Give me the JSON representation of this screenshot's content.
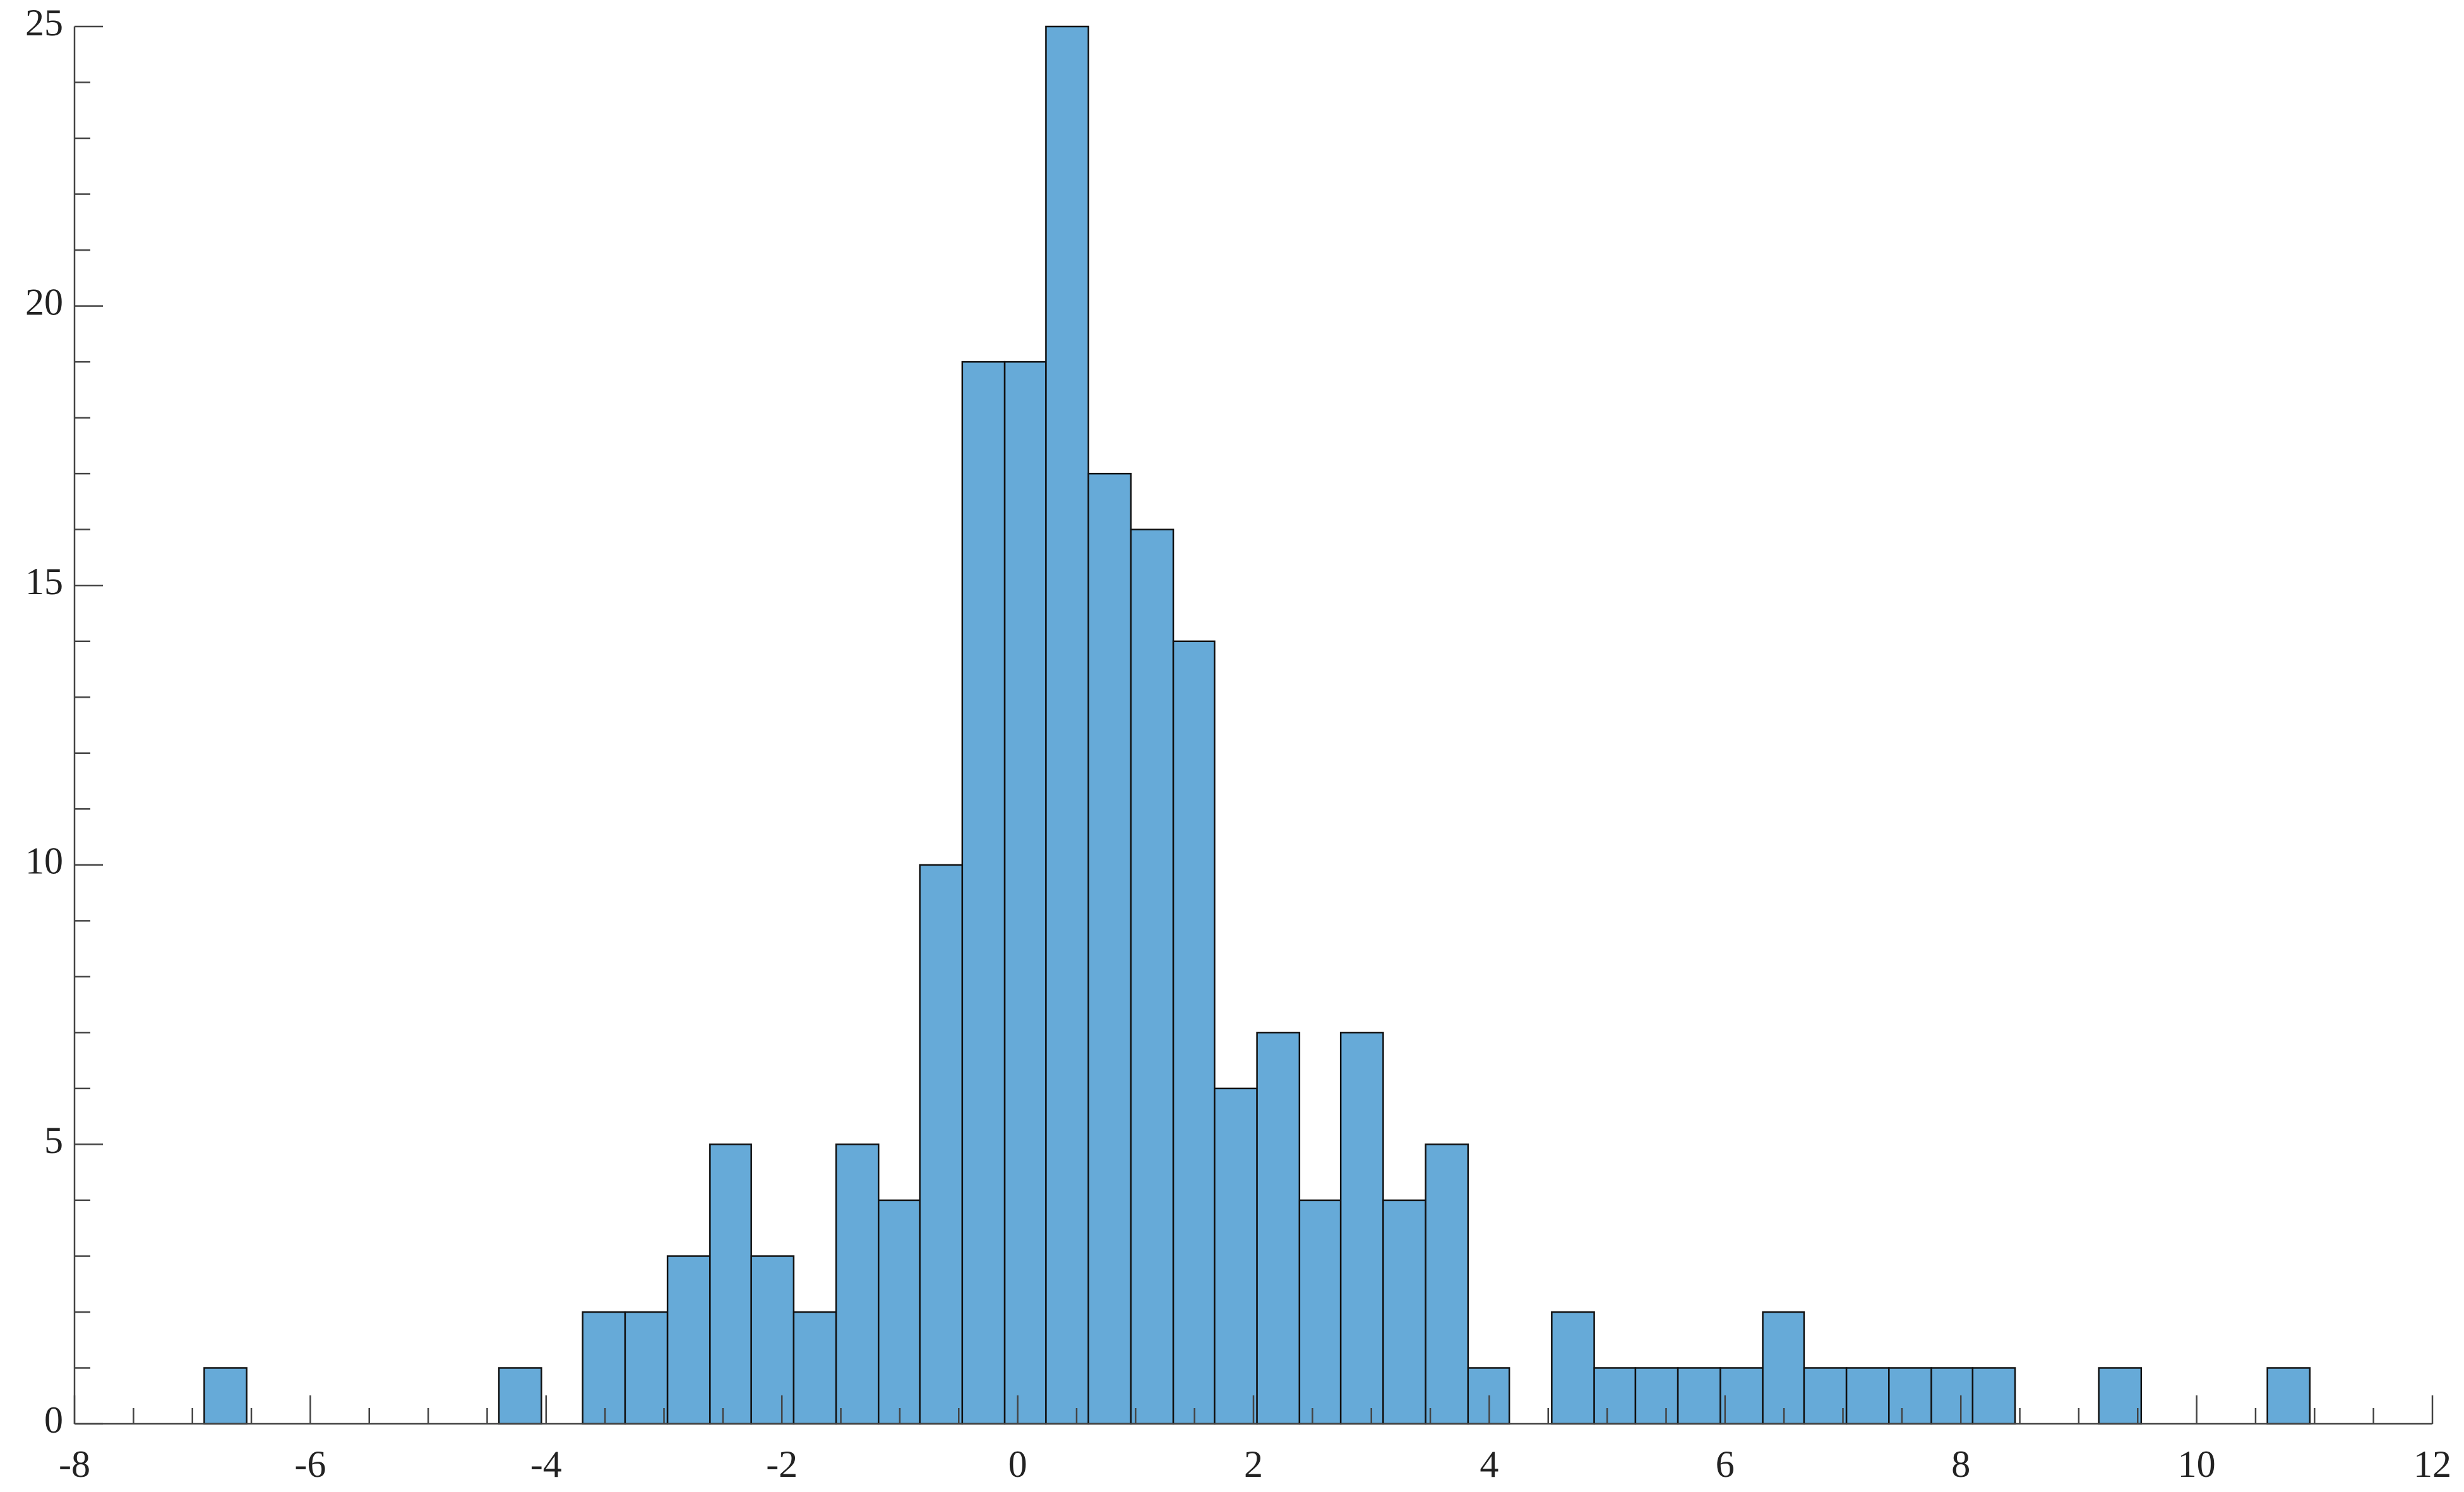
{
  "chart_data": {
    "type": "histogram",
    "bins": [
      -6.9,
      -6.54,
      -6.19,
      -5.83,
      -5.47,
      -5.11,
      -4.76,
      -4.4,
      -4.04,
      -3.69,
      -3.33,
      -2.97,
      -2.61,
      -2.26,
      -1.9,
      -1.54,
      -1.18,
      -0.83,
      -0.47,
      -0.11,
      0.24,
      0.6,
      0.96,
      1.32,
      1.67,
      2.03,
      2.39,
      2.74,
      3.1,
      3.46,
      3.82,
      4.17,
      4.53,
      4.89,
      5.24,
      5.6,
      5.96,
      6.32,
      6.67,
      7.03,
      7.39,
      7.75,
      8.1,
      8.46,
      8.82,
      9.17,
      9.53,
      9.89,
      10.25,
      10.6,
      10.96
    ],
    "values": [
      1,
      0,
      0,
      0,
      0,
      0,
      0,
      1,
      0,
      2,
      2,
      3,
      5,
      3,
      2,
      5,
      4,
      10,
      19,
      19,
      25,
      17,
      16,
      14,
      6,
      7,
      4,
      7,
      4,
      5,
      1,
      0,
      2,
      1,
      1,
      1,
      1,
      2,
      1,
      1,
      1,
      1,
      1,
      0,
      0,
      1,
      0,
      0,
      0,
      1
    ],
    "color": "#66aad8",
    "xlim": [
      -8,
      12
    ],
    "xticks": [
      -8,
      -6,
      -4,
      -2,
      0,
      2,
      4,
      6,
      8,
      10,
      12
    ],
    "ylim": [
      0,
      25
    ],
    "yticks": [
      0,
      5,
      10,
      15,
      20,
      25
    ]
  }
}
